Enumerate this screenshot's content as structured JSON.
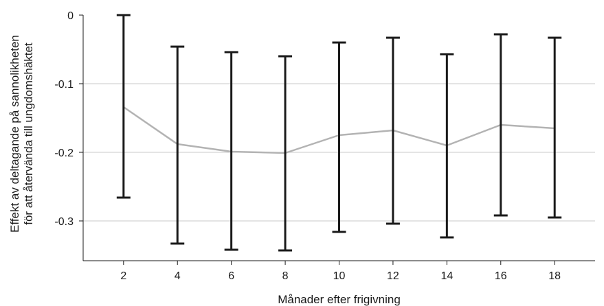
{
  "chart_data": {
    "type": "line",
    "xlabel": "Månader efter frigivning",
    "ylabel_lines": [
      "Effekt av deltagande på sannolikheten",
      "för att återvända till ungdomshäktet"
    ],
    "x": [
      2,
      4,
      6,
      8,
      10,
      12,
      14,
      16,
      18
    ],
    "x_ticks": [
      "2",
      "4",
      "6",
      "8",
      "10",
      "12",
      "14",
      "16",
      "18"
    ],
    "y_ticks": [
      "0",
      "-0.1",
      "-0.2",
      "-0.3"
    ],
    "y_tick_values": [
      0,
      -0.1,
      -0.2,
      -0.3
    ],
    "ylim": [
      -0.358,
      0
    ],
    "xlim": [
      0.5,
      19.5
    ],
    "grid": "horizontal",
    "series": [
      {
        "values": [
          -0.134,
          -0.188,
          -0.199,
          -0.201,
          -0.175,
          -0.168,
          -0.19,
          -0.16,
          -0.165
        ],
        "lower": [
          -0.266,
          -0.333,
          -0.342,
          -0.343,
          -0.316,
          -0.304,
          -0.324,
          -0.292,
          -0.295
        ],
        "upper": [
          0.0,
          -0.046,
          -0.054,
          -0.06,
          -0.04,
          -0.033,
          -0.057,
          -0.028,
          -0.033
        ],
        "line_color": "#b3b3b3",
        "errorbar_color": "#1a1a1a"
      }
    ]
  }
}
